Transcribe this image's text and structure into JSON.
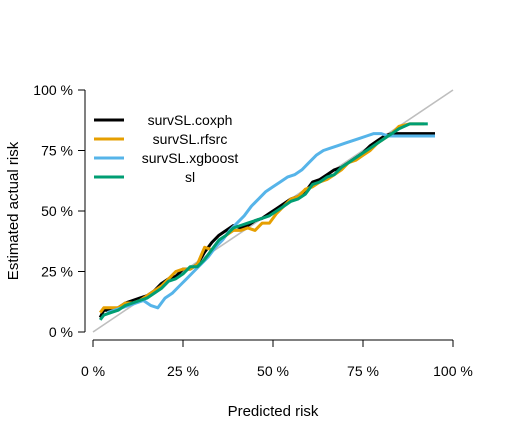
{
  "chart_data": {
    "type": "line",
    "title": "",
    "xlabel": "Predicted risk",
    "ylabel": "Estimated actual risk",
    "xlim": [
      0,
      100
    ],
    "ylim": [
      0,
      100
    ],
    "x_ticks": [
      "0 %",
      "25 %",
      "50 %",
      "75 %",
      "100 %"
    ],
    "y_ticks": [
      "0 %",
      "25 %",
      "50 %",
      "75 %",
      "100 %"
    ],
    "tick_values": [
      0,
      25,
      50,
      75,
      100
    ],
    "grid": false,
    "legend_position": "top-left",
    "reference_line": {
      "points": [
        [
          0,
          0
        ],
        [
          100,
          100
        ]
      ],
      "color": "#bebebe"
    },
    "series": [
      {
        "name": "survSL.coxph",
        "color": "#000000",
        "points": [
          [
            2,
            6
          ],
          [
            3,
            9
          ],
          [
            5,
            9
          ],
          [
            7,
            10
          ],
          [
            9,
            12
          ],
          [
            11,
            13
          ],
          [
            13,
            14
          ],
          [
            15,
            15
          ],
          [
            17,
            17
          ],
          [
            19,
            20
          ],
          [
            21,
            22
          ],
          [
            23,
            23
          ],
          [
            25,
            26
          ],
          [
            27,
            26
          ],
          [
            29,
            28
          ],
          [
            31,
            33
          ],
          [
            33,
            37
          ],
          [
            35,
            40
          ],
          [
            37,
            42
          ],
          [
            39,
            44
          ],
          [
            41,
            43
          ],
          [
            43,
            44
          ],
          [
            45,
            46
          ],
          [
            47,
            47
          ],
          [
            49,
            49
          ],
          [
            51,
            51
          ],
          [
            53,
            53
          ],
          [
            55,
            55
          ],
          [
            57,
            56
          ],
          [
            59,
            58
          ],
          [
            61,
            62
          ],
          [
            63,
            63
          ],
          [
            65,
            65
          ],
          [
            67,
            67
          ],
          [
            69,
            68
          ],
          [
            71,
            70
          ],
          [
            73,
            72
          ],
          [
            75,
            74
          ],
          [
            77,
            77
          ],
          [
            79,
            79
          ],
          [
            81,
            81
          ],
          [
            83,
            82
          ],
          [
            86,
            82
          ],
          [
            90,
            82
          ],
          [
            95,
            82
          ]
        ]
      },
      {
        "name": "survSL.rfsrc",
        "color": "#e69f00",
        "points": [
          [
            2,
            8
          ],
          [
            3,
            10
          ],
          [
            5,
            10
          ],
          [
            7,
            10
          ],
          [
            9,
            12
          ],
          [
            11,
            12
          ],
          [
            13,
            13
          ],
          [
            15,
            15
          ],
          [
            17,
            17
          ],
          [
            19,
            19
          ],
          [
            21,
            22
          ],
          [
            23,
            25
          ],
          [
            25,
            26
          ],
          [
            27,
            26
          ],
          [
            29,
            28
          ],
          [
            31,
            35
          ],
          [
            33,
            34
          ],
          [
            35,
            37
          ],
          [
            37,
            40
          ],
          [
            39,
            42
          ],
          [
            41,
            42
          ],
          [
            43,
            43
          ],
          [
            45,
            42
          ],
          [
            47,
            45
          ],
          [
            49,
            45
          ],
          [
            51,
            49
          ],
          [
            53,
            52
          ],
          [
            55,
            55
          ],
          [
            57,
            56
          ],
          [
            59,
            59
          ],
          [
            61,
            60
          ],
          [
            63,
            62
          ],
          [
            65,
            63
          ],
          [
            67,
            65
          ],
          [
            69,
            67
          ],
          [
            71,
            70
          ],
          [
            73,
            71
          ],
          [
            75,
            73
          ],
          [
            77,
            75
          ],
          [
            79,
            78
          ],
          [
            81,
            80
          ],
          [
            83,
            82
          ],
          [
            85,
            85
          ],
          [
            88,
            86
          ],
          [
            92,
            86
          ]
        ]
      },
      {
        "name": "survSL.xgboost",
        "color": "#56b4e9",
        "points": [
          [
            4,
            8
          ],
          [
            6,
            9
          ],
          [
            8,
            10
          ],
          [
            10,
            11
          ],
          [
            12,
            12
          ],
          [
            14,
            13
          ],
          [
            16,
            11
          ],
          [
            18,
            10
          ],
          [
            20,
            14
          ],
          [
            22,
            16
          ],
          [
            24,
            19
          ],
          [
            26,
            22
          ],
          [
            28,
            25
          ],
          [
            30,
            28
          ],
          [
            32,
            31
          ],
          [
            34,
            35
          ],
          [
            36,
            38
          ],
          [
            38,
            42
          ],
          [
            40,
            45
          ],
          [
            42,
            48
          ],
          [
            44,
            52
          ],
          [
            46,
            55
          ],
          [
            48,
            58
          ],
          [
            50,
            60
          ],
          [
            52,
            62
          ],
          [
            54,
            64
          ],
          [
            56,
            65
          ],
          [
            58,
            67
          ],
          [
            60,
            70
          ],
          [
            62,
            73
          ],
          [
            64,
            75
          ],
          [
            66,
            76
          ],
          [
            68,
            77
          ],
          [
            70,
            78
          ],
          [
            72,
            79
          ],
          [
            74,
            80
          ],
          [
            76,
            81
          ],
          [
            78,
            82
          ],
          [
            80,
            82
          ],
          [
            82,
            81
          ],
          [
            84,
            81
          ],
          [
            87,
            81
          ],
          [
            91,
            81
          ],
          [
            95,
            81
          ]
        ]
      },
      {
        "name": "sl",
        "color": "#009e73",
        "points": [
          [
            2,
            5
          ],
          [
            3,
            7
          ],
          [
            5,
            8
          ],
          [
            7,
            9
          ],
          [
            9,
            11
          ],
          [
            11,
            12
          ],
          [
            13,
            13
          ],
          [
            15,
            14
          ],
          [
            17,
            16
          ],
          [
            19,
            18
          ],
          [
            21,
            21
          ],
          [
            23,
            22
          ],
          [
            25,
            24
          ],
          [
            27,
            27
          ],
          [
            29,
            27
          ],
          [
            31,
            30
          ],
          [
            33,
            34
          ],
          [
            35,
            38
          ],
          [
            37,
            40
          ],
          [
            39,
            43
          ],
          [
            41,
            44
          ],
          [
            43,
            45
          ],
          [
            45,
            46
          ],
          [
            47,
            47
          ],
          [
            49,
            48
          ],
          [
            51,
            50
          ],
          [
            53,
            52
          ],
          [
            55,
            54
          ],
          [
            57,
            55
          ],
          [
            59,
            57
          ],
          [
            61,
            61
          ],
          [
            63,
            62
          ],
          [
            65,
            64
          ],
          [
            67,
            65
          ],
          [
            69,
            68
          ],
          [
            71,
            70
          ],
          [
            73,
            72
          ],
          [
            75,
            74
          ],
          [
            77,
            76
          ],
          [
            79,
            78
          ],
          [
            81,
            80
          ],
          [
            83,
            82
          ],
          [
            85,
            84
          ],
          [
            88,
            86
          ],
          [
            93,
            86
          ]
        ]
      }
    ]
  }
}
